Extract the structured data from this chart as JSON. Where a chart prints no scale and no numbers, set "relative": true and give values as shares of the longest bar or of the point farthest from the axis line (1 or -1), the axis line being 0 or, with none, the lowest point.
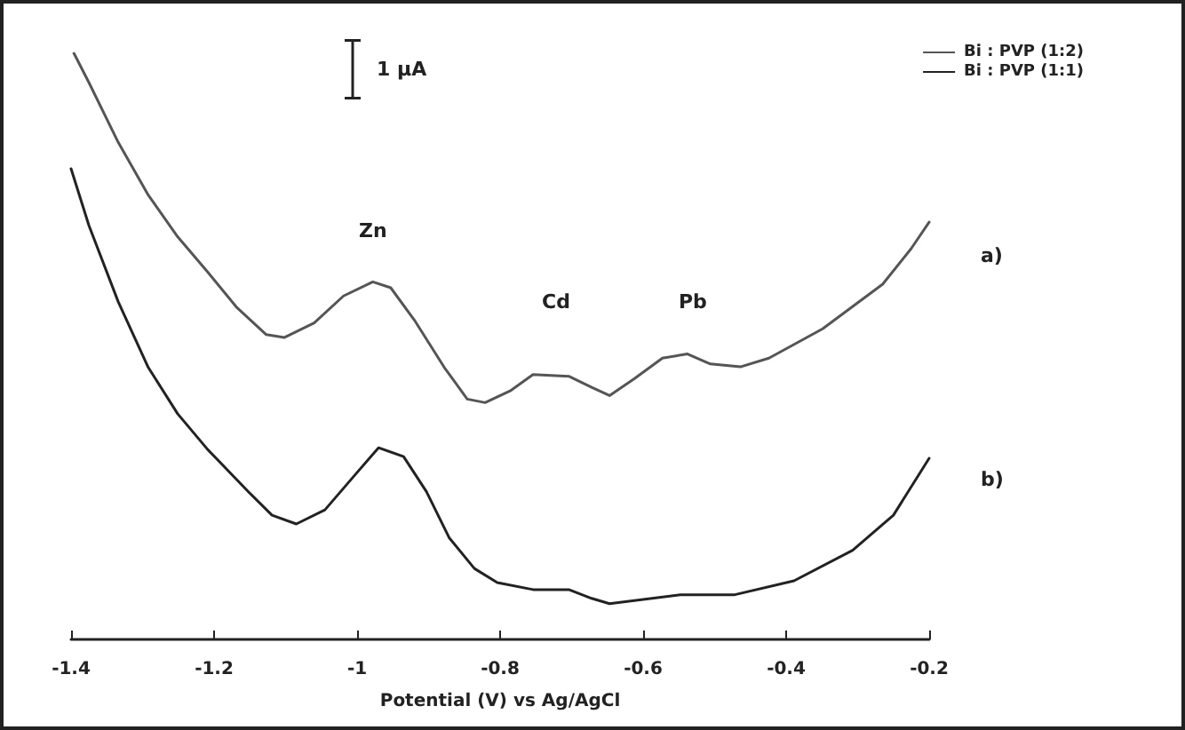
{
  "chart_data": {
    "type": "line",
    "relative": true,
    "xlabel": "Potential (V) vs Ag/AgCl",
    "xlim": [
      -1.4,
      -0.2
    ],
    "xticks": [
      -1.4,
      -1.2,
      -1,
      -0.8,
      -0.6,
      -0.4,
      -0.2
    ],
    "legend": "top right",
    "grid": false,
    "marker": "none",
    "line_style": "solid",
    "annotations": [
      "1 μA",
      "Zn",
      "Cd",
      "Pb",
      "a)",
      "b)"
    ],
    "series": [
      {
        "name": "Bi : PVP (1:2)",
        "color": "#555555",
        "x": [
          -1.396,
          -1.375,
          -1.334,
          -1.292,
          -1.251,
          -1.209,
          -1.168,
          -1.127,
          -1.102,
          -1.06,
          -1.019,
          -0.978,
          -0.953,
          -0.92,
          -0.878,
          -0.846,
          -0.821,
          -0.786,
          -0.754,
          -0.704,
          -0.672,
          -0.647,
          -0.612,
          -0.573,
          -0.538,
          -0.506,
          -0.464,
          -0.424,
          -0.349,
          -0.265,
          -0.225,
          -0.2
        ],
        "values": [
          1.0,
          0.95,
          0.848,
          0.758,
          0.687,
          0.627,
          0.566,
          0.52,
          0.515,
          0.54,
          0.586,
          0.61,
          0.6,
          0.545,
          0.464,
          0.41,
          0.404,
          0.424,
          0.452,
          0.449,
          0.43,
          0.416,
          0.445,
          0.48,
          0.487,
          0.47,
          0.465,
          0.48,
          0.53,
          0.606,
          0.667,
          0.712
        ]
      },
      {
        "name": "Bi : PVP (1:1)",
        "color": "#222222",
        "x": [
          -1.4,
          -1.375,
          -1.334,
          -1.292,
          -1.251,
          -1.209,
          -1.152,
          -1.119,
          -1.085,
          -1.045,
          -1.002,
          -0.97,
          -0.935,
          -0.903,
          -0.871,
          -0.836,
          -0.804,
          -0.754,
          -0.704,
          -0.672,
          -0.647,
          -0.548,
          -0.473,
          -0.389,
          -0.307,
          -0.25,
          -0.2
        ],
        "values": [
          0.803,
          0.706,
          0.576,
          0.464,
          0.385,
          0.324,
          0.252,
          0.212,
          0.197,
          0.221,
          0.282,
          0.327,
          0.312,
          0.252,
          0.173,
          0.121,
          0.097,
          0.085,
          0.085,
          0.07,
          0.061,
          0.076,
          0.076,
          0.1,
          0.152,
          0.212,
          0.309
        ]
      }
    ]
  }
}
